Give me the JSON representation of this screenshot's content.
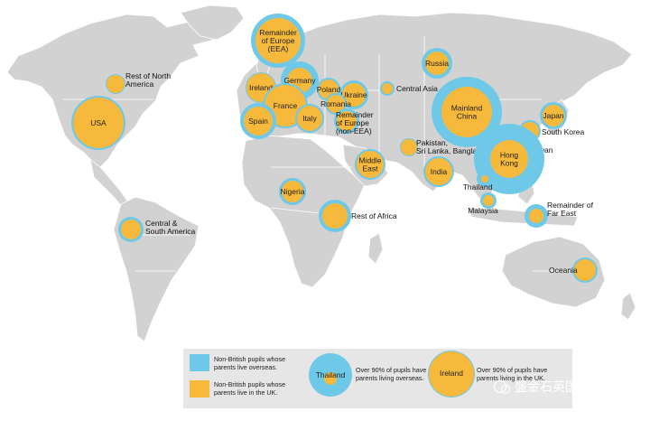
{
  "colors": {
    "land": "#d2d2d2",
    "border": "#ffffff",
    "blue": "#6ec8e8",
    "orange": "#f6b93b",
    "legend_bg": "#e6e6e6"
  },
  "regions": [
    {
      "name": "Remainder of Europe (EEA)",
      "lines": [
        "Remainder",
        "of Europe",
        "(EEA)"
      ],
      "blue_r": 30,
      "orange_r": 25
    },
    {
      "name": "Russia",
      "lines": [
        "Russia"
      ],
      "blue_r": 17,
      "orange_r": 13
    },
    {
      "name": "Rest of North America",
      "lines": [
        "Rest of North",
        "America"
      ],
      "blue_r": 11,
      "orange_r": 10
    },
    {
      "name": "Germany",
      "lines": [
        "Germany"
      ],
      "blue_r": 21,
      "orange_r": 14
    },
    {
      "name": "Ireland",
      "lines": [
        "Ireland"
      ],
      "blue_r": 17,
      "orange_r": 16
    },
    {
      "name": "Poland",
      "lines": [
        "Poland"
      ],
      "blue_r": 13,
      "orange_r": 11
    },
    {
      "name": "Ukraine",
      "lines": [
        "Ukraine"
      ],
      "blue_r": 16,
      "orange_r": 13
    },
    {
      "name": "Central Asia",
      "lines": [
        "Central Asia"
      ],
      "blue_r": 8,
      "orange_r": 6
    },
    {
      "name": "Romania",
      "lines": [
        "Romania"
      ],
      "blue_r": 12,
      "orange_r": 10
    },
    {
      "name": "France",
      "lines": [
        "France"
      ],
      "blue_r": 25,
      "orange_r": 23
    },
    {
      "name": "USA",
      "lines": [
        "USA"
      ],
      "blue_r": 30,
      "orange_r": 28
    },
    {
      "name": "Spain",
      "lines": [
        "Spain"
      ],
      "blue_r": 20,
      "orange_r": 16
    },
    {
      "name": "Italy",
      "lines": [
        "Italy"
      ],
      "blue_r": 16,
      "orange_r": 14
    },
    {
      "name": "Remainder of Europe (non-EEA)",
      "lines": [
        "Remainder",
        "of Europe",
        "(non-EEA)"
      ],
      "blue_r": 14,
      "orange_r": 11
    },
    {
      "name": "Mainland China",
      "lines": [
        "Mainland",
        "China"
      ],
      "blue_r": 39,
      "orange_r": 28
    },
    {
      "name": "Japan",
      "lines": [
        "Japan"
      ],
      "blue_r": 15,
      "orange_r": 12
    },
    {
      "name": "South Korea",
      "lines": [
        "South Korea"
      ],
      "blue_r": 12,
      "orange_r": 10
    },
    {
      "name": "Pakistan, Sri Lanka, Bangladesh",
      "lines": [
        "Pakistan,",
        "Sri Lanka, Bangladesh"
      ],
      "blue_r": 10,
      "orange_r": 9
    },
    {
      "name": "Taiwan",
      "lines": [
        "Taiwan"
      ],
      "blue_r": 5,
      "orange_r": 4
    },
    {
      "name": "Hong Kong",
      "lines": [
        "Hong",
        "Kong"
      ],
      "blue_r": 39,
      "orange_r": 21
    },
    {
      "name": "Middle East",
      "lines": [
        "Middle",
        "East"
      ],
      "blue_r": 17,
      "orange_r": 15
    },
    {
      "name": "India",
      "lines": [
        "India"
      ],
      "blue_r": 17,
      "orange_r": 15
    },
    {
      "name": "Thailand",
      "lines": [
        "Thailand"
      ],
      "blue_r": 9,
      "orange_r": 4
    },
    {
      "name": "Nigeria",
      "lines": [
        "Nigeria"
      ],
      "blue_r": 15,
      "orange_r": 12
    },
    {
      "name": "Malaysia",
      "lines": [
        "Malaysia"
      ],
      "blue_r": 9,
      "orange_r": 6
    },
    {
      "name": "Remainder of Far East",
      "lines": [
        "Remainder of",
        "Far East"
      ],
      "blue_r": 13,
      "orange_r": 8
    },
    {
      "name": "Rest of Africa",
      "lines": [
        "Rest of Africa"
      ],
      "blue_r": 18,
      "orange_r": 14
    },
    {
      "name": "Central & South America",
      "lines": [
        "Central &",
        "South America"
      ],
      "blue_r": 14,
      "orange_r": 11
    },
    {
      "name": "Oceania",
      "lines": [
        "Oceania"
      ],
      "blue_r": 14,
      "orange_r": 12
    }
  ],
  "legend": {
    "blue_label": [
      "Non-British pupils whose",
      "parents live overseas."
    ],
    "orange_label": [
      "Non-British pupils whose",
      "parents live in the UK."
    ],
    "example_blue_name": "Thailand",
    "example_blue_label": [
      "Over 90% of pupils have",
      "parents living overseas."
    ],
    "example_orange_name": "Ireland",
    "example_orange_label": [
      "Over 90% of pupils have",
      "parents living in the UK."
    ]
  },
  "watermark": "盛金石英国地产"
}
